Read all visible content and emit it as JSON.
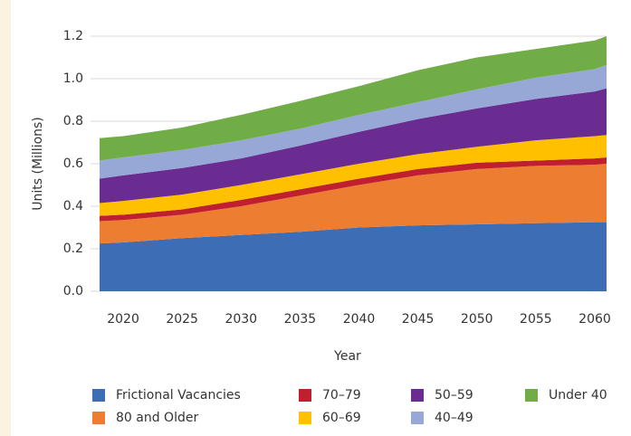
{
  "chart_data": {
    "type": "stacked_area",
    "x_label": "Year",
    "y_label": "Units (Millions)",
    "x": [
      2018,
      2020,
      2025,
      2030,
      2035,
      2040,
      2045,
      2050,
      2055,
      2060,
      2061
    ],
    "xlim": [
      2018,
      2061
    ],
    "xticks": [
      2020,
      2025,
      2030,
      2035,
      2040,
      2045,
      2050,
      2055,
      2060
    ],
    "ylim": [
      0,
      1.2
    ],
    "yticks": [
      {
        "value": 0,
        "label": "0.0"
      },
      0.2,
      0.4,
      0.6,
      0.8,
      {
        "value": 1,
        "label": "1.0"
      },
      1.2
    ],
    "grid": true,
    "legend": "bottom",
    "series": [
      {
        "name": "Frictional Vacancies",
        "color": "#3d6db5",
        "values": [
          0.225,
          0.23,
          0.25,
          0.265,
          0.28,
          0.3,
          0.31,
          0.315,
          0.32,
          0.325,
          0.325
        ]
      },
      {
        "name": "80 and Older",
        "color": "#ed7d31",
        "values": [
          0.105,
          0.105,
          0.11,
          0.135,
          0.17,
          0.2,
          0.235,
          0.26,
          0.27,
          0.27,
          0.275
        ]
      },
      {
        "name": "70–79",
        "color": "#c0202e",
        "values": [
          0.025,
          0.025,
          0.025,
          0.03,
          0.03,
          0.03,
          0.03,
          0.03,
          0.025,
          0.03,
          0.03
        ]
      },
      {
        "name": "60–69",
        "color": "#ffc000",
        "values": [
          0.06,
          0.065,
          0.07,
          0.07,
          0.07,
          0.07,
          0.07,
          0.075,
          0.095,
          0.105,
          0.105
        ]
      },
      {
        "name": "50–59",
        "color": "#6a2c91",
        "values": [
          0.115,
          0.12,
          0.125,
          0.125,
          0.135,
          0.15,
          0.165,
          0.18,
          0.195,
          0.21,
          0.22
        ]
      },
      {
        "name": "40–49",
        "color": "#97a8d6",
        "values": [
          0.085,
          0.085,
          0.085,
          0.085,
          0.08,
          0.08,
          0.08,
          0.09,
          0.1,
          0.105,
          0.11
        ]
      },
      {
        "name": "Under 40",
        "color": "#70ad47",
        "values": [
          0.105,
          0.1,
          0.105,
          0.12,
          0.13,
          0.135,
          0.15,
          0.15,
          0.135,
          0.135,
          0.135
        ]
      }
    ]
  }
}
